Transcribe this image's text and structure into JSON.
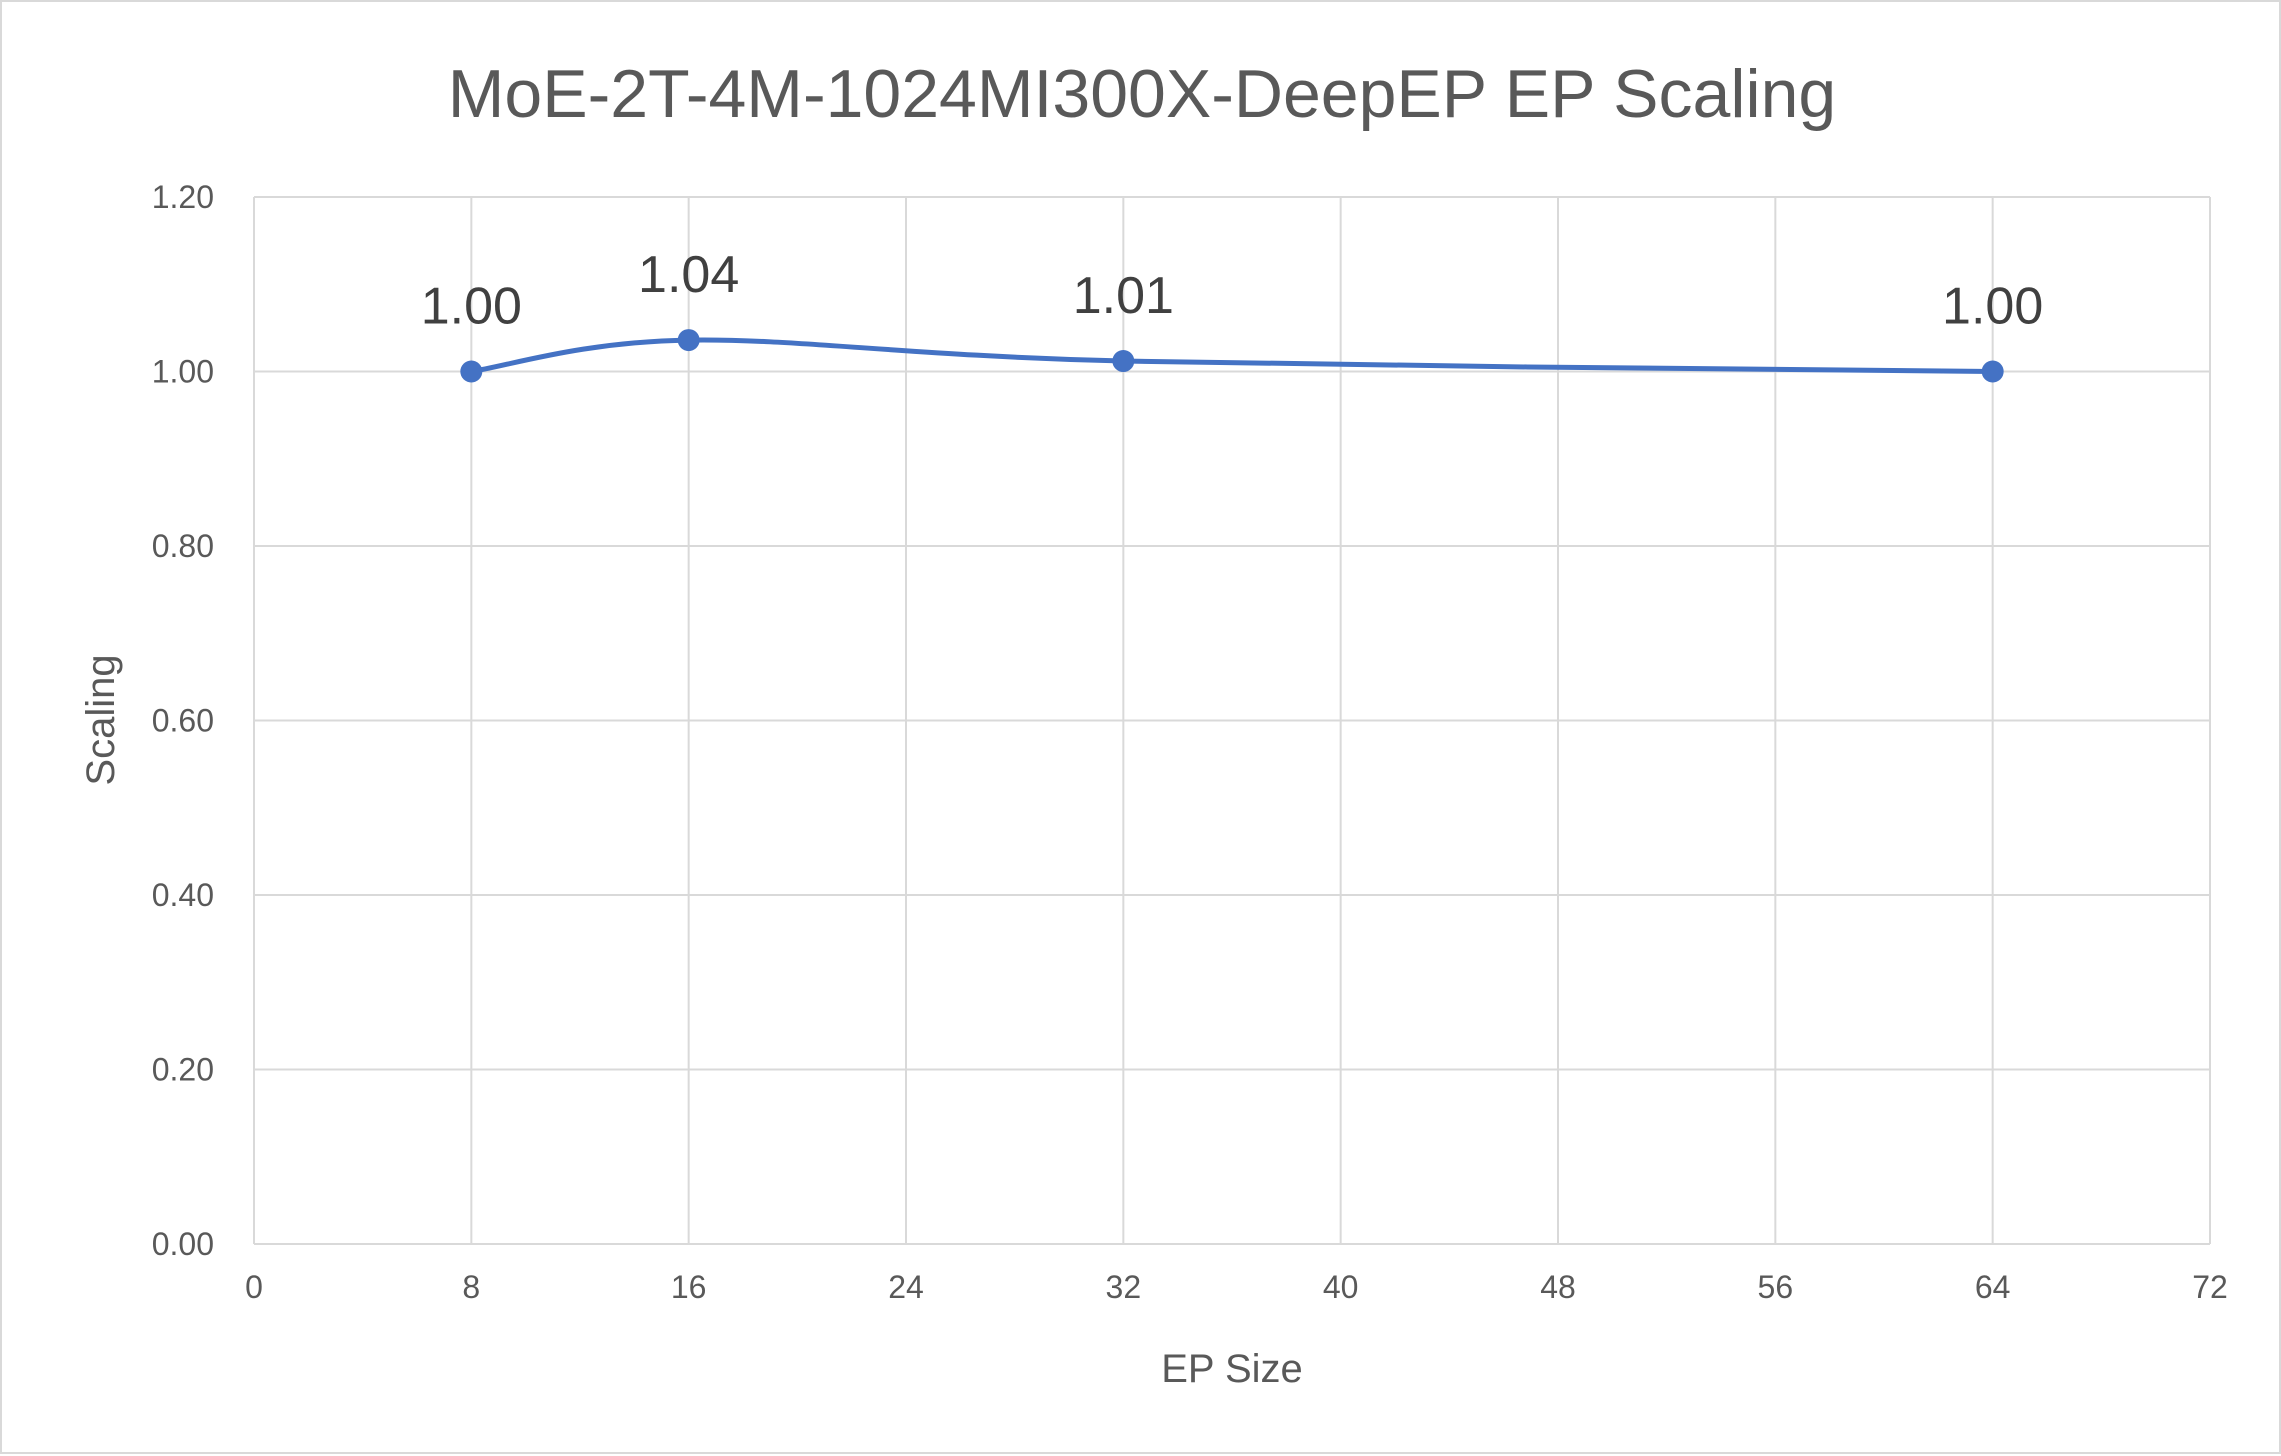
{
  "chart_data": {
    "type": "scatter",
    "title": "MoE-2T-4M-1024MI300X-DeepEP EP Scaling",
    "xlabel": "EP Size",
    "ylabel": "Scaling",
    "xlim": [
      0,
      72
    ],
    "ylim": [
      0,
      1.2
    ],
    "xticks": [
      0,
      8,
      16,
      24,
      32,
      40,
      48,
      56,
      64,
      72
    ],
    "yticks": [
      "0.00",
      "0.20",
      "0.40",
      "0.60",
      "0.80",
      "1.00",
      "1.20"
    ],
    "grid": true,
    "smooth_line": true,
    "markers": true,
    "series": [
      {
        "x": [
          8,
          16,
          32,
          64
        ],
        "y": [
          1.0,
          1.036,
          1.012,
          1.0
        ],
        "labels": [
          "1.00",
          "1.04",
          "1.01",
          "1.00"
        ],
        "color": "#4472c4"
      }
    ]
  }
}
